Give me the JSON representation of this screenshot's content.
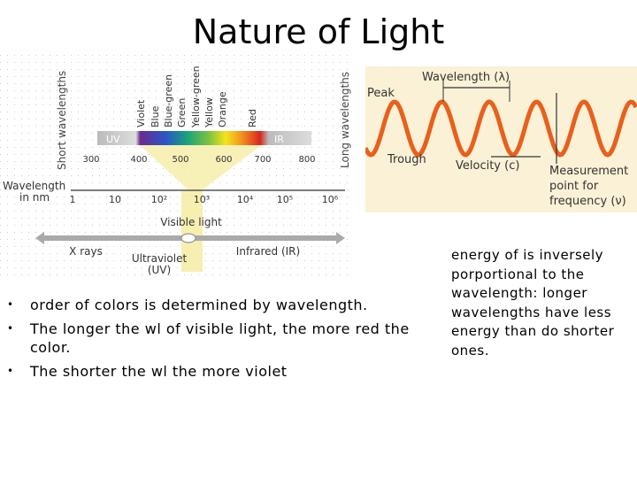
{
  "title": "Nature of Light",
  "spectrum_diagram": {
    "short_label": "Short wavelengths",
    "long_label": "Long wavelengths",
    "colors": [
      "Violet",
      "Blue",
      "Blue-green",
      "Green",
      "Yellow-green",
      "Yellow",
      "Orange",
      "Red"
    ],
    "uv": "UV",
    "ir": "IR",
    "nm_ticks": [
      "300",
      "400",
      "500",
      "600",
      "700",
      "800"
    ],
    "axis_label": [
      "Wavelength",
      "in nm"
    ],
    "log_ticks": [
      "1",
      "10",
      "10²",
      "10³",
      "10⁴",
      "10⁵",
      "10⁶"
    ],
    "visible": "Visible light",
    "x_rays": "X rays",
    "ultraviolet": [
      "Ultraviolet",
      "(UV)"
    ],
    "infrared": "Infrared (IR)"
  },
  "wave_diagram": {
    "wavelength": "Wavelength (λ)",
    "peak": "Peak",
    "trough": "Trough",
    "velocity": "Velocity (c)",
    "measurement": [
      "Measurement",
      "point for",
      "frequency (ν)"
    ]
  },
  "bullets": [
    "order of colors is determined by wavelength.",
    "The longer the wl of visible light, the more red the color.",
    "The shorter the wl the more violet"
  ],
  "note": "energy of is inversely porportional to the wavelength: longer wavelengths have less energy than do shorter ones."
}
